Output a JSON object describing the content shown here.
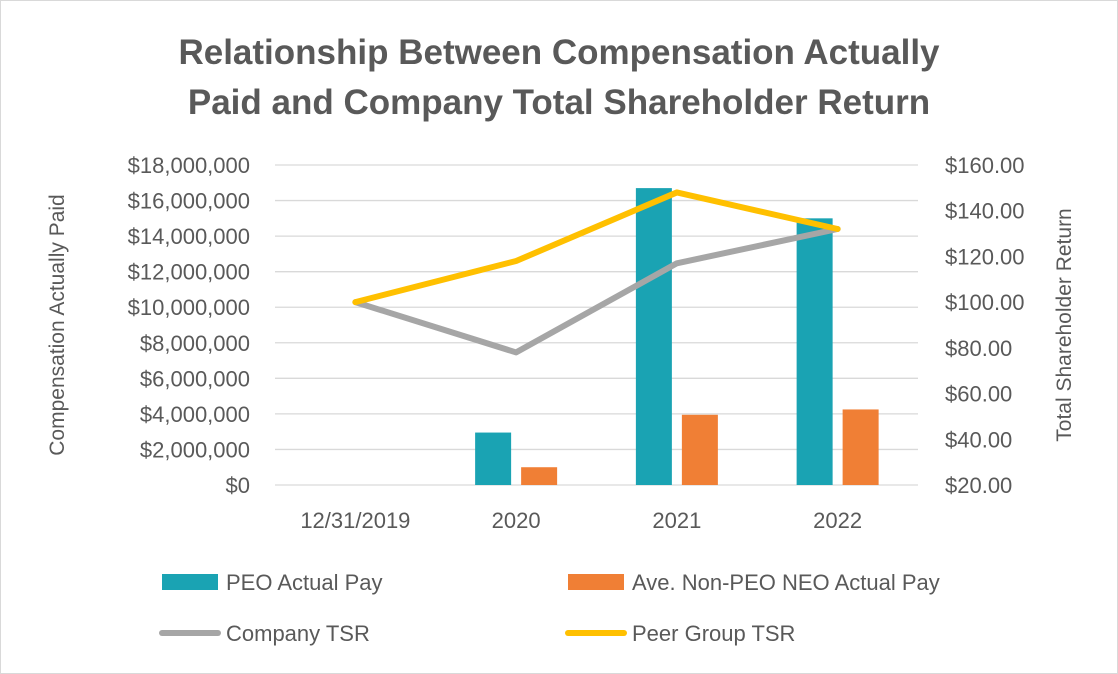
{
  "chart_data": {
    "type": "bar+line",
    "title_line1": "Relationship Between Compensation Actually",
    "title_line2": "Paid and Company Total Shareholder Return",
    "categories": [
      "12/31/2019",
      "2020",
      "2021",
      "2022"
    ],
    "y_left": {
      "label": "Compensation Actually Paid",
      "min": 0,
      "max": 18000000,
      "step": 2000000,
      "tick_labels": [
        "$0",
        "$2,000,000",
        "$4,000,000",
        "$6,000,000",
        "$8,000,000",
        "$10,000,000",
        "$12,000,000",
        "$14,000,000",
        "$16,000,000",
        "$18,000,000"
      ]
    },
    "y_right": {
      "label": "Total Shareholder Return",
      "min": 20,
      "max": 160,
      "step": 20,
      "tick_labels": [
        "$20.00",
        "$40.00",
        "$60.00",
        "$80.00",
        "$100.00",
        "$120.00",
        "$140.00",
        "$160.00"
      ]
    },
    "series": [
      {
        "name": "PEO Actual Pay",
        "kind": "bar",
        "axis": "left",
        "color": "#1aa3b3",
        "values": [
          null,
          2950000,
          16700000,
          15000000
        ]
      },
      {
        "name": "Ave. Non-PEO NEO Actual Pay",
        "kind": "bar",
        "axis": "left",
        "color": "#f07f35",
        "values": [
          null,
          1000000,
          3950000,
          4250000
        ]
      },
      {
        "name": "Company TSR",
        "kind": "line",
        "axis": "right",
        "color": "#a6a6a6",
        "values": [
          100,
          78,
          117,
          132
        ]
      },
      {
        "name": "Peer Group TSR",
        "kind": "line",
        "axis": "right",
        "color": "#ffc000",
        "values": [
          100,
          118,
          148,
          132
        ]
      }
    ],
    "gridlines": true,
    "legend_position": "bottom"
  }
}
